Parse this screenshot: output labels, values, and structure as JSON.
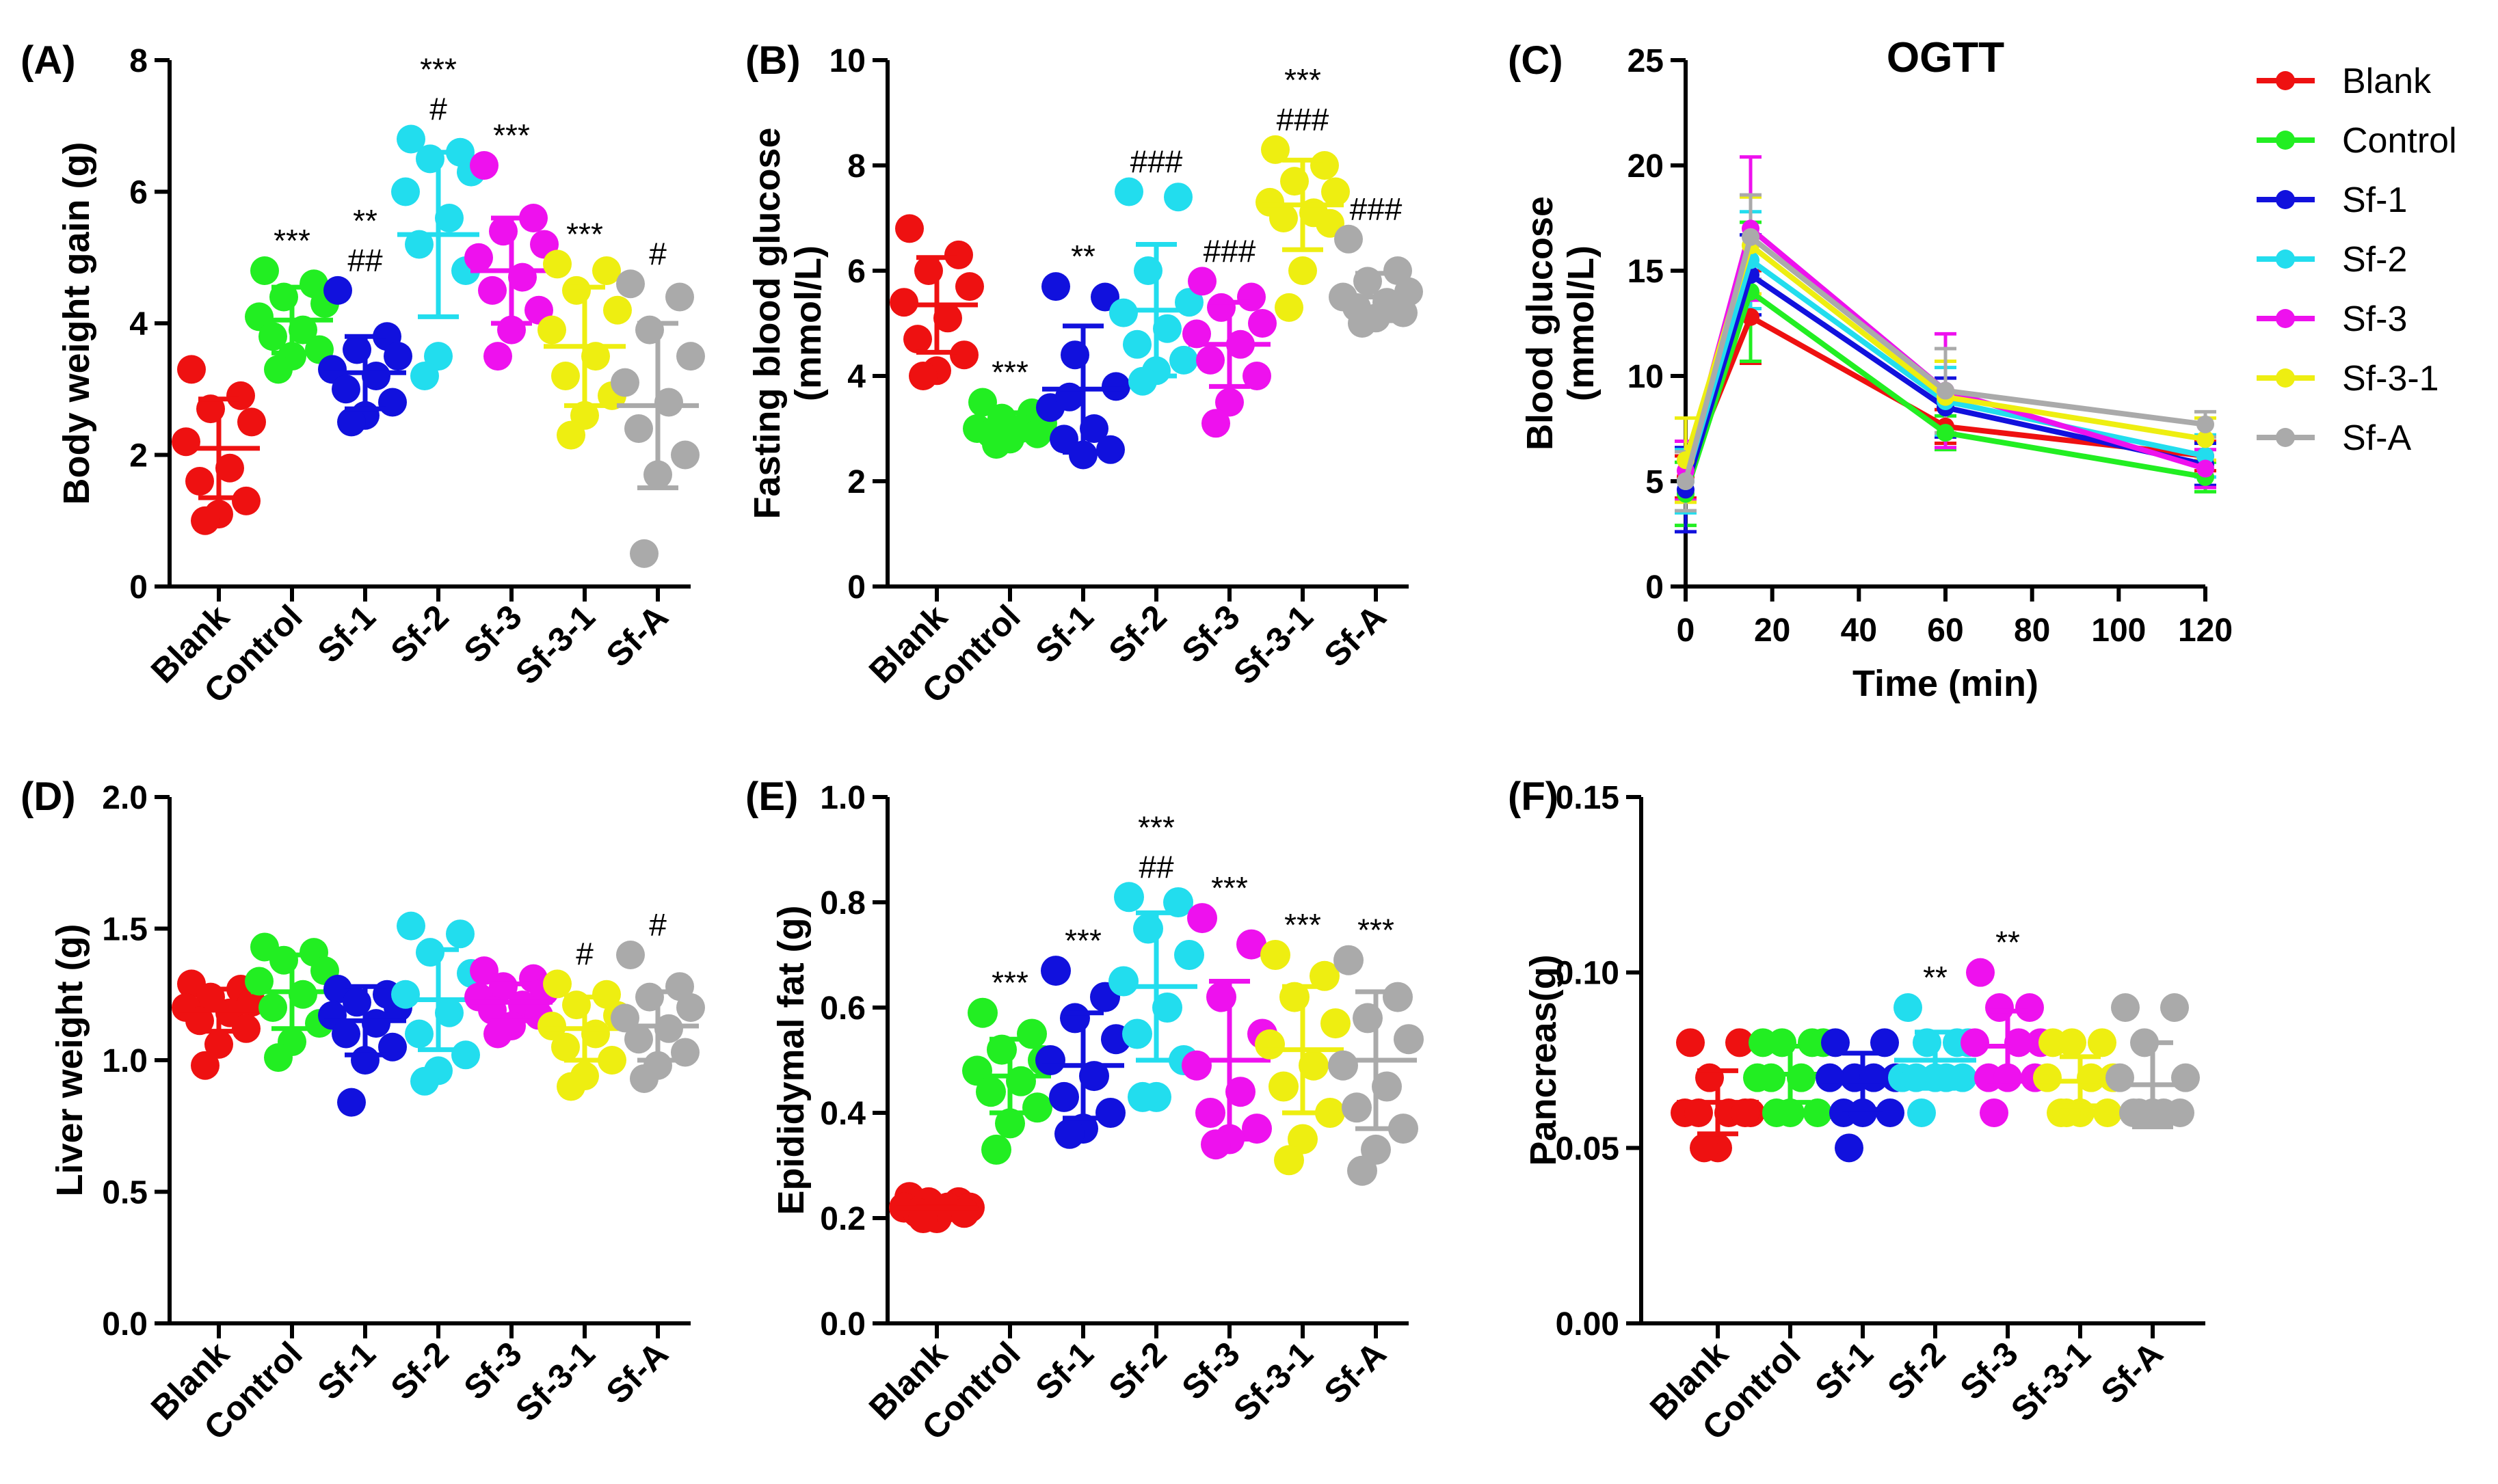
{
  "colors": {
    "Blank": "#ee1111",
    "Control": "#22ee22",
    "Sf-1": "#1111dd",
    "Sf-2": "#22ddee",
    "Sf-3": "#ee11ee",
    "Sf-3-1": "#eeee11",
    "Sf-A": "#aaaaaa"
  },
  "legend": [
    "Blank",
    "Control",
    "Sf-1",
    "Sf-2",
    "Sf-3",
    "Sf-3-1",
    "Sf-A"
  ],
  "chart_data": [
    {
      "id": "A",
      "panel_label": "(A)",
      "type": "scatter",
      "ylabel": "Body weight gain (g)",
      "ylim": [
        0,
        8
      ],
      "yticks": [
        "0",
        "2",
        "4",
        "6",
        "8"
      ],
      "categories": [
        "Blank",
        "Control",
        "Sf-1",
        "Sf-2",
        "Sf-3",
        "Sf-3-1",
        "Sf-A"
      ],
      "groups": [
        {
          "points": [
            3.3,
            2.9,
            2.7,
            2.5,
            2.2,
            1.8,
            1.6,
            1.3,
            1.1,
            1.0
          ],
          "mean": 2.1,
          "sd": 0.75,
          "marks": []
        },
        {
          "points": [
            4.8,
            4.6,
            4.4,
            4.3,
            4.1,
            3.9,
            3.8,
            3.6,
            3.5,
            3.3
          ],
          "mean": 4.05,
          "sd": 0.5,
          "marks": [
            "***"
          ]
        },
        {
          "points": [
            4.5,
            3.8,
            3.6,
            3.5,
            3.3,
            3.2,
            3.0,
            2.8,
            2.6,
            2.5
          ],
          "mean": 3.25,
          "sd": 0.55,
          "marks": [
            "**",
            "##"
          ]
        },
        {
          "points": [
            6.8,
            6.6,
            6.5,
            6.3,
            6.0,
            5.6,
            5.2,
            4.8,
            3.5,
            3.2
          ],
          "mean": 5.35,
          "sd": 1.25,
          "marks": [
            "***",
            "#"
          ]
        },
        {
          "points": [
            6.4,
            5.6,
            5.4,
            5.2,
            5.0,
            4.7,
            4.5,
            4.2,
            3.9,
            3.5
          ],
          "mean": 4.8,
          "sd": 0.8,
          "marks": [
            "***"
          ]
        },
        {
          "points": [
            4.9,
            4.8,
            4.5,
            4.2,
            3.9,
            3.5,
            3.2,
            2.9,
            2.6,
            2.3
          ],
          "mean": 3.65,
          "sd": 0.9,
          "marks": [
            "***"
          ]
        },
        {
          "points": [
            4.6,
            4.4,
            3.9,
            3.5,
            3.1,
            2.8,
            2.4,
            2.0,
            1.7,
            0.5
          ],
          "mean": 2.75,
          "sd": 1.25,
          "marks": [
            "#"
          ]
        }
      ]
    },
    {
      "id": "B",
      "panel_label": "(B)",
      "type": "scatter",
      "ylabel": [
        "Fasting blood glucose",
        "(mmol/L)"
      ],
      "ylim": [
        0,
        10
      ],
      "yticks": [
        "0",
        "2",
        "4",
        "6",
        "8",
        "10"
      ],
      "categories": [
        "Blank",
        "Control",
        "Sf-1",
        "Sf-2",
        "Sf-3",
        "Sf-3-1",
        "Sf-A"
      ],
      "groups": [
        {
          "points": [
            6.8,
            6.3,
            6.0,
            5.7,
            5.4,
            5.1,
            4.7,
            4.4,
            4.1,
            4.0
          ],
          "mean": 5.35,
          "sd": 0.9,
          "marks": []
        },
        {
          "points": [
            3.5,
            3.3,
            3.2,
            3.1,
            3.0,
            3.0,
            2.9,
            2.9,
            2.8,
            2.7
          ],
          "mean": 3.05,
          "sd": 0.25,
          "marks": [
            "***"
          ]
        },
        {
          "points": [
            5.7,
            5.5,
            4.4,
            3.8,
            3.4,
            3.0,
            2.8,
            2.6,
            2.5,
            3.6
          ],
          "mean": 3.75,
          "sd": 1.2,
          "marks": [
            "**"
          ]
        },
        {
          "points": [
            7.5,
            7.4,
            6.0,
            5.4,
            5.2,
            4.9,
            4.6,
            4.3,
            4.1,
            3.9
          ],
          "mean": 5.25,
          "sd": 1.25,
          "marks": [
            "###"
          ]
        },
        {
          "points": [
            5.8,
            5.5,
            5.3,
            5.0,
            4.8,
            4.6,
            4.3,
            4.0,
            3.5,
            3.1
          ],
          "mean": 4.6,
          "sd": 0.8,
          "marks": [
            "###"
          ]
        },
        {
          "points": [
            8.3,
            8.0,
            7.7,
            7.5,
            7.3,
            7.1,
            7.0,
            6.9,
            6.0,
            5.3
          ],
          "mean": 7.25,
          "sd": 0.85,
          "marks": [
            "***",
            "###"
          ]
        },
        {
          "points": [
            6.6,
            6.0,
            5.8,
            5.6,
            5.5,
            5.4,
            5.3,
            5.2,
            5.1,
            5.0
          ],
          "mean": 5.5,
          "sd": 0.45,
          "marks": [
            "###"
          ]
        }
      ]
    },
    {
      "id": "C",
      "panel_label": "(C)",
      "type": "line",
      "title": "OGTT",
      "ylabel": [
        "Blood glucose",
        "(mmol/L)"
      ],
      "xlabel": "Time (min)",
      "ylim": [
        0,
        25
      ],
      "xlim": [
        0,
        120
      ],
      "yticks": [
        "0",
        "5",
        "10",
        "15",
        "20",
        "25"
      ],
      "xticks": [
        "0",
        "20",
        "40",
        "60",
        "80",
        "100",
        "120"
      ],
      "x": [
        0,
        15,
        60,
        120
      ],
      "series": [
        {
          "name": "Blank",
          "values": [
            5.2,
            12.8,
            7.6,
            6.2
          ],
          "errors": [
            1.0,
            2.2,
            0.8,
            0.7
          ]
        },
        {
          "name": "Control",
          "values": [
            4.4,
            14.0,
            7.3,
            5.2
          ],
          "errors": [
            1.5,
            3.3,
            0.8,
            0.7
          ]
        },
        {
          "name": "Sf-1",
          "values": [
            4.6,
            14.8,
            8.5,
            5.8
          ],
          "errors": [
            2.0,
            1.9,
            1.4,
            1.0
          ]
        },
        {
          "name": "Sf-2",
          "values": [
            5.0,
            15.5,
            8.8,
            6.2
          ],
          "errors": [
            1.5,
            2.3,
            1.6,
            1.0
          ]
        },
        {
          "name": "Sf-3",
          "values": [
            5.5,
            17.0,
            9.3,
            5.6
          ],
          "errors": [
            1.4,
            3.4,
            2.7,
            0.9
          ]
        },
        {
          "name": "Sf-3-1",
          "values": [
            6.0,
            16.2,
            9.0,
            7.0
          ],
          "errors": [
            2.0,
            2.3,
            1.7,
            1.0
          ]
        },
        {
          "name": "Sf-A",
          "values": [
            5.0,
            16.6,
            9.3,
            7.7
          ],
          "errors": [
            1.4,
            2.0,
            2.0,
            0.6
          ]
        }
      ]
    },
    {
      "id": "D",
      "panel_label": "(D)",
      "type": "scatter",
      "ylabel": "Liver weight (g)",
      "ylim": [
        0,
        2
      ],
      "yticks": [
        "0.0",
        "0.5",
        "1.0",
        "1.5",
        "2.0"
      ],
      "categories": [
        "Blank",
        "Control",
        "Sf-1",
        "Sf-2",
        "Sf-3",
        "Sf-3-1",
        "Sf-A"
      ],
      "groups": [
        {
          "points": [
            1.29,
            1.27,
            1.24,
            1.22,
            1.2,
            1.18,
            1.15,
            1.12,
            1.06,
            0.98
          ],
          "mean": 1.19,
          "sd": 0.08,
          "marks": []
        },
        {
          "points": [
            1.43,
            1.41,
            1.38,
            1.34,
            1.3,
            1.25,
            1.2,
            1.14,
            1.07,
            1.01
          ],
          "mean": 1.26,
          "sd": 0.14,
          "marks": []
        },
        {
          "points": [
            1.27,
            1.25,
            1.22,
            1.2,
            1.17,
            1.14,
            1.1,
            1.05,
            1.0,
            0.84
          ],
          "mean": 1.15,
          "sd": 0.13,
          "marks": []
        },
        {
          "points": [
            1.51,
            1.48,
            1.41,
            1.33,
            1.25,
            1.18,
            1.1,
            1.02,
            0.96,
            0.92
          ],
          "mean": 1.23,
          "sd": 0.19,
          "marks": []
        },
        {
          "points": [
            1.34,
            1.31,
            1.28,
            1.26,
            1.24,
            1.21,
            1.19,
            1.17,
            1.13,
            1.1
          ],
          "mean": 1.22,
          "sd": 0.07,
          "marks": []
        },
        {
          "points": [
            1.29,
            1.25,
            1.21,
            1.17,
            1.13,
            1.1,
            1.05,
            1.0,
            0.94,
            0.9
          ],
          "mean": 1.12,
          "sd": 0.12,
          "marks": [
            "#"
          ]
        },
        {
          "points": [
            1.4,
            1.28,
            1.24,
            1.2,
            1.16,
            1.12,
            1.08,
            1.03,
            0.98,
            0.93
          ],
          "mean": 1.13,
          "sd": 0.13,
          "marks": [
            "#"
          ]
        }
      ]
    },
    {
      "id": "E",
      "panel_label": "(E)",
      "type": "scatter",
      "ylabel": "Epididymal fat (g)",
      "ylim": [
        0,
        1
      ],
      "yticks": [
        "0.0",
        "0.2",
        "0.4",
        "0.6",
        "0.8",
        "1.0"
      ],
      "categories": [
        "Blank",
        "Control",
        "Sf-1",
        "Sf-2",
        "Sf-3",
        "Sf-3-1",
        "Sf-A"
      ],
      "groups": [
        {
          "points": [
            0.24,
            0.23,
            0.23,
            0.22,
            0.22,
            0.22,
            0.21,
            0.21,
            0.2,
            0.2
          ],
          "mean": 0.22,
          "sd": 0.01,
          "marks": []
        },
        {
          "points": [
            0.59,
            0.55,
            0.52,
            0.5,
            0.48,
            0.46,
            0.44,
            0.41,
            0.38,
            0.33
          ],
          "mean": 0.47,
          "sd": 0.07,
          "marks": [
            "***"
          ]
        },
        {
          "points": [
            0.67,
            0.62,
            0.58,
            0.54,
            0.5,
            0.47,
            0.43,
            0.4,
            0.37,
            0.36
          ],
          "mean": 0.49,
          "sd": 0.1,
          "marks": [
            "***"
          ]
        },
        {
          "points": [
            0.81,
            0.8,
            0.75,
            0.7,
            0.65,
            0.6,
            0.55,
            0.5,
            0.43,
            0.43
          ],
          "mean": 0.64,
          "sd": 0.14,
          "marks": [
            "***",
            "##"
          ]
        },
        {
          "points": [
            0.77,
            0.72,
            0.62,
            0.55,
            0.49,
            0.44,
            0.4,
            0.37,
            0.35,
            0.34
          ],
          "mean": 0.5,
          "sd": 0.15,
          "marks": [
            "***"
          ]
        },
        {
          "points": [
            0.7,
            0.66,
            0.62,
            0.57,
            0.53,
            0.49,
            0.45,
            0.4,
            0.35,
            0.31
          ],
          "mean": 0.52,
          "sd": 0.12,
          "marks": [
            "***"
          ]
        },
        {
          "points": [
            0.69,
            0.62,
            0.58,
            0.54,
            0.49,
            0.45,
            0.41,
            0.37,
            0.33,
            0.29
          ],
          "mean": 0.5,
          "sd": 0.13,
          "marks": [
            "***"
          ]
        }
      ]
    },
    {
      "id": "F",
      "panel_label": "(F)",
      "type": "scatter",
      "ylabel": "Pancreas(g)",
      "ylim": [
        0,
        0.15
      ],
      "yticks": [
        "0.00",
        "0.05",
        "0.10",
        "0.15"
      ],
      "categories": [
        "Blank",
        "Control",
        "Sf-1",
        "Sf-2",
        "Sf-3",
        "Sf-3-1",
        "Sf-A"
      ],
      "groups": [
        {
          "points": [
            0.08,
            0.08,
            0.07,
            0.06,
            0.06,
            0.06,
            0.06,
            0.06,
            0.05,
            0.05
          ],
          "mean": 0.063,
          "sd": 0.009,
          "marks": []
        },
        {
          "points": [
            0.08,
            0.08,
            0.08,
            0.08,
            0.07,
            0.07,
            0.07,
            0.06,
            0.06,
            0.06
          ],
          "mean": 0.071,
          "sd": 0.008,
          "marks": []
        },
        {
          "points": [
            0.08,
            0.08,
            0.07,
            0.07,
            0.07,
            0.07,
            0.06,
            0.06,
            0.06,
            0.05
          ],
          "mean": 0.069,
          "sd": 0.008,
          "marks": []
        },
        {
          "points": [
            0.09,
            0.08,
            0.08,
            0.08,
            0.07,
            0.07,
            0.07,
            0.07,
            0.07,
            0.06
          ],
          "mean": 0.075,
          "sd": 0.008,
          "marks": [
            "**"
          ]
        },
        {
          "points": [
            0.1,
            0.09,
            0.09,
            0.08,
            0.08,
            0.08,
            0.07,
            0.07,
            0.07,
            0.06
          ],
          "mean": 0.079,
          "sd": 0.01,
          "marks": [
            "**"
          ]
        },
        {
          "points": [
            0.08,
            0.08,
            0.08,
            0.07,
            0.07,
            0.07,
            0.06,
            0.06,
            0.06,
            0.06
          ],
          "mean": 0.069,
          "sd": 0.007,
          "marks": []
        },
        {
          "points": [
            0.09,
            0.09,
            0.08,
            0.07,
            0.07,
            0.06,
            0.06,
            0.06,
            0.06,
            0.06
          ],
          "mean": 0.068,
          "sd": 0.012,
          "marks": []
        }
      ]
    }
  ]
}
